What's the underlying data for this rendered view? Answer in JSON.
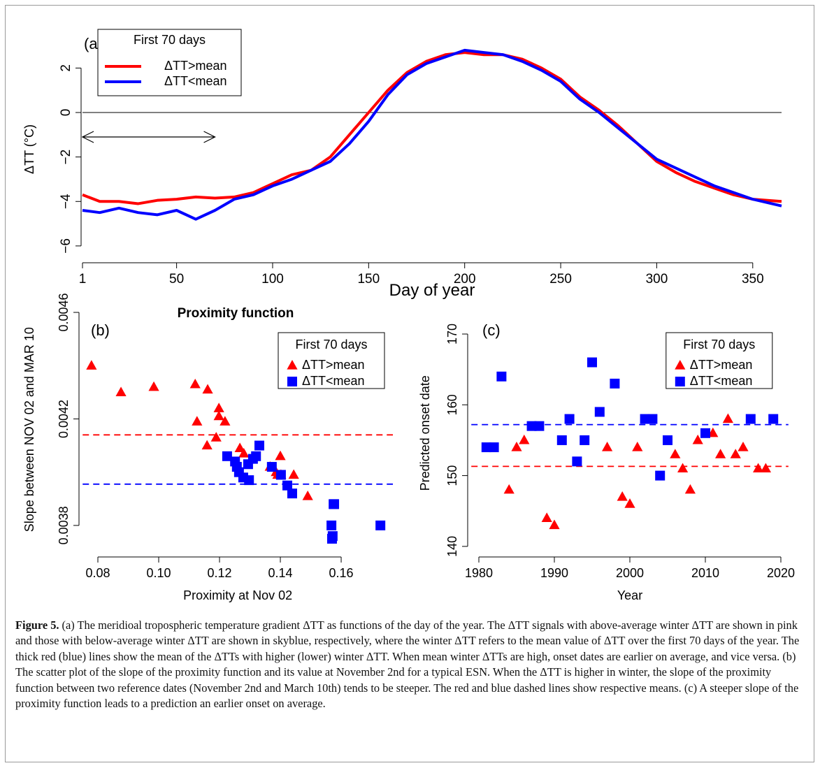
{
  "chart_data": [
    {
      "type": "line",
      "panel_label": "(a)",
      "xlabel": "Day of year",
      "ylabel": "ΔTT (°C)",
      "xlim": [
        1,
        365
      ],
      "ylim": [
        -6.6,
        3.3
      ],
      "xticks": [
        1,
        50,
        100,
        150,
        200,
        250,
        300,
        350
      ],
      "yticks": [
        {
          "value": -6,
          "label": "−6"
        },
        {
          "value": -4,
          "label": "−4"
        },
        {
          "value": -2,
          "label": "−2"
        },
        0,
        2
      ],
      "hline": 0,
      "arrow": {
        "x": [
          1,
          70
        ],
        "y": -1.1
      },
      "legend": "top-left",
      "legend_title": "First 70 days",
      "x": [
        1,
        10,
        20,
        30,
        40,
        50,
        60,
        70,
        80,
        90,
        100,
        110,
        120,
        130,
        140,
        150,
        160,
        170,
        180,
        190,
        200,
        210,
        220,
        230,
        240,
        250,
        260,
        270,
        280,
        290,
        300,
        310,
        320,
        330,
        340,
        350,
        365
      ],
      "series": [
        {
          "name": "ΔTT>mean",
          "color": "#ff0000",
          "values": [
            -3.7,
            -4.0,
            -4.0,
            -4.1,
            -3.95,
            -3.9,
            -3.8,
            -3.85,
            -3.8,
            -3.6,
            -3.2,
            -2.8,
            -2.6,
            -2.0,
            -1.0,
            0.0,
            1.0,
            1.8,
            2.3,
            2.6,
            2.7,
            2.6,
            2.6,
            2.4,
            2.0,
            1.5,
            0.7,
            0.1,
            -0.6,
            -1.4,
            -2.2,
            -2.7,
            -3.1,
            -3.4,
            -3.7,
            -3.9,
            -4.0
          ]
        },
        {
          "name": "ΔTT<mean",
          "color": "#0000ff",
          "values": [
            -4.4,
            -4.5,
            -4.3,
            -4.5,
            -4.6,
            -4.4,
            -4.8,
            -4.4,
            -3.9,
            -3.7,
            -3.3,
            -3.0,
            -2.6,
            -2.2,
            -1.4,
            -0.4,
            0.8,
            1.7,
            2.2,
            2.5,
            2.8,
            2.7,
            2.6,
            2.3,
            1.9,
            1.4,
            0.6,
            0.0,
            -0.7,
            -1.4,
            -2.1,
            -2.5,
            -2.9,
            -3.3,
            -3.6,
            -3.9,
            -4.2
          ]
        }
      ]
    },
    {
      "type": "scatter",
      "panel_label": "(b)",
      "title": "Proximity function",
      "xlabel": "Proximity at Nov 02",
      "ylabel": "Slope between NOV 02 and MAR 10",
      "xlim": [
        0.075,
        0.177
      ],
      "ylim": [
        0.0037,
        0.00462
      ],
      "xticks": [
        0.08,
        {
          "value": 0.1,
          "label": "0.10"
        },
        0.12,
        0.14,
        0.16
      ],
      "yticks": [
        0.0038,
        0.0042,
        0.0046
      ],
      "legend": "top-right",
      "legend_title": "First 70 days",
      "series": [
        {
          "name": "ΔTT>mean",
          "color": "#ff0000",
          "marker": "triangle",
          "mean": 0.00414,
          "x": [
            0.0779,
            0.0876,
            0.0984,
            0.112,
            0.1126,
            0.1161,
            0.1198,
            0.1198,
            0.1159,
            0.1189,
            0.1218,
            0.1267,
            0.128,
            0.1366,
            0.1386,
            0.14,
            0.1391,
            0.1402,
            0.1444,
            0.149
          ],
          "values": [
            0.0044,
            0.0043,
            0.00432,
            0.00433,
            0.00419,
            0.00431,
            0.00424,
            0.00421,
            0.0041,
            0.00413,
            0.00419,
            0.00409,
            0.00407,
            0.00402,
            0.004,
            0.00406,
            0.00399,
            0.00399,
            0.00399,
            0.00391
          ]
        },
        {
          "name": "ΔTT<mean",
          "color": "#0000ff",
          "marker": "square",
          "mean": 0.003955,
          "x": [
            0.1225,
            0.1251,
            0.1257,
            0.1264,
            0.1278,
            0.1294,
            0.1297,
            0.131,
            0.132,
            0.1331,
            0.1372,
            0.1402,
            0.1423,
            0.1439,
            0.1568,
            0.157,
            0.1572,
            0.1575,
            0.1577,
            0.1729
          ],
          "values": [
            0.00406,
            0.00404,
            0.00402,
            0.004,
            0.00398,
            0.00403,
            0.00397,
            0.00405,
            0.00406,
            0.0041,
            0.00402,
            0.00399,
            0.00395,
            0.00392,
            0.0038,
            0.00375,
            0.00376,
            0.00388,
            0.00388,
            0.0038
          ]
        }
      ]
    },
    {
      "type": "scatter",
      "panel_label": "(c)",
      "xlabel": "Year",
      "ylabel": "Predicted onset date",
      "xlim": [
        1979,
        2021
      ],
      "ylim": [
        139,
        173
      ],
      "xticks": [
        1980,
        1990,
        2000,
        2010,
        2020
      ],
      "yticks": [
        140,
        150,
        160,
        170
      ],
      "legend": "top-right",
      "legend_title": "First 70 days",
      "series": [
        {
          "name": "ΔTT>mean",
          "color": "#ff0000",
          "marker": "triangle",
          "mean": 151.3,
          "x": [
            1984,
            1985,
            1986,
            1989,
            1990,
            1997,
            1999,
            2000,
            2001,
            2006,
            2007,
            2008,
            2009,
            2011,
            2012,
            2013,
            2014,
            2015,
            2017,
            2018
          ],
          "values": [
            148,
            154,
            155,
            144,
            143,
            154,
            147,
            146,
            154,
            153,
            151,
            148,
            155,
            156,
            153,
            158,
            153,
            154,
            151,
            151
          ]
        },
        {
          "name": "ΔTT<mean",
          "color": "#0000ff",
          "marker": "square",
          "mean": 157.2,
          "x": [
            1981,
            1982,
            1983,
            1987,
            1988,
            1991,
            1992,
            1993,
            1994,
            1995,
            1996,
            1998,
            2002,
            2003,
            2004,
            2005,
            2010,
            2016,
            2019
          ],
          "values": [
            154,
            154,
            164,
            157,
            157,
            155,
            158,
            152,
            155,
            166,
            159,
            163,
            158,
            158,
            150,
            155,
            156,
            158,
            158
          ]
        }
      ]
    }
  ],
  "caption": {
    "label": "Figure 5.",
    "text": "(a) The meridioal tropospheric temperature gradient ΔTT as functions of the day of the year. The ΔTT signals with above-average winter ΔTT are shown in pink and those with below-average winter ΔTT are shown in skyblue, respectively, where the winter ΔTT refers to the mean value of ΔTT over the first 70 days of the year. The thick red (blue) lines show the mean of the ΔTTs with higher (lower) winter ΔTT. When mean winter ΔTTs are high, onset dates are earlier on average, and vice versa. (b) The scatter plot of the slope of the proximity function and its value at November 2nd for a typical ESN. When the ΔTT is higher in winter, the slope of the proximity function between two reference dates (November 2nd and March 10th) tends to be steeper. The red and blue dashed lines show respective means. (c) A steeper slope of the proximity function leads to a prediction an earlier onset on average."
  }
}
